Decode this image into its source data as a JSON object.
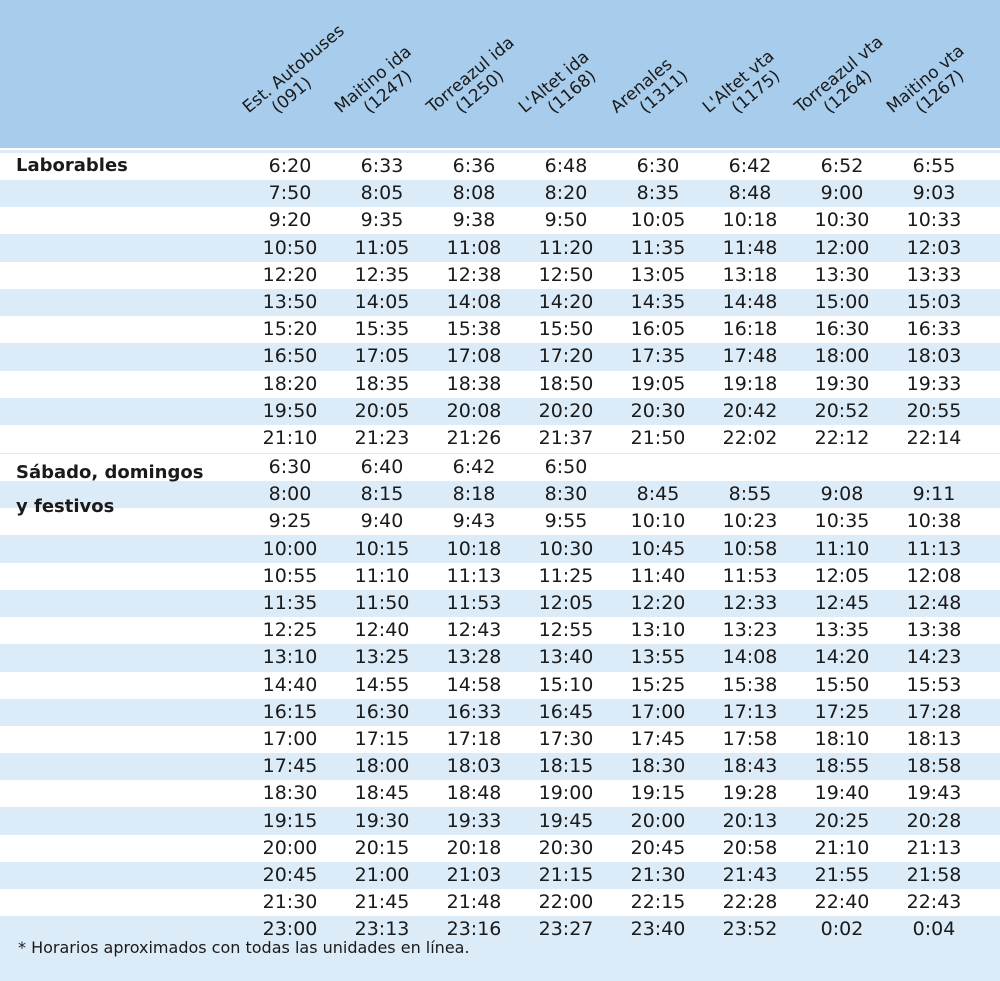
{
  "header": {
    "columns": [
      {
        "name": "Est. Autobuses",
        "code": "(091)"
      },
      {
        "name": "Maitino ida",
        "code": "(1247)"
      },
      {
        "name": "Torreazul ida",
        "code": "(1250)"
      },
      {
        "name": "L'Altet ida",
        "code": "(1168)"
      },
      {
        "name": "Arenales",
        "code": "(1311)"
      },
      {
        "name": "L'Altet vta",
        "code": "(1175)"
      },
      {
        "name": "Torreazul vta",
        "code": "(1264)"
      },
      {
        "name": "Maitino vta",
        "code": "(1267)"
      }
    ]
  },
  "sections": [
    {
      "label_lines": [
        "Laborables"
      ],
      "rows": [
        [
          "6:20",
          "6:33",
          "6:36",
          "6:48",
          "6:30",
          "6:42",
          "6:52",
          "6:55"
        ],
        [
          "7:50",
          "8:05",
          "8:08",
          "8:20",
          "8:35",
          "8:48",
          "9:00",
          "9:03"
        ],
        [
          "9:20",
          "9:35",
          "9:38",
          "9:50",
          "10:05",
          "10:18",
          "10:30",
          "10:33"
        ],
        [
          "10:50",
          "11:05",
          "11:08",
          "11:20",
          "11:35",
          "11:48",
          "12:00",
          "12:03"
        ],
        [
          "12:20",
          "12:35",
          "12:38",
          "12:50",
          "13:05",
          "13:18",
          "13:30",
          "13:33"
        ],
        [
          "13:50",
          "14:05",
          "14:08",
          "14:20",
          "14:35",
          "14:48",
          "15:00",
          "15:03"
        ],
        [
          "15:20",
          "15:35",
          "15:38",
          "15:50",
          "16:05",
          "16:18",
          "16:30",
          "16:33"
        ],
        [
          "16:50",
          "17:05",
          "17:08",
          "17:20",
          "17:35",
          "17:48",
          "18:00",
          "18:03"
        ],
        [
          "18:20",
          "18:35",
          "18:38",
          "18:50",
          "19:05",
          "19:18",
          "19:30",
          "19:33"
        ],
        [
          "19:50",
          "20:05",
          "20:08",
          "20:20",
          "20:30",
          "20:42",
          "20:52",
          "20:55"
        ],
        [
          "21:10",
          "21:23",
          "21:26",
          "21:37",
          "21:50",
          "22:02",
          "22:12",
          "22:14"
        ]
      ]
    },
    {
      "label_lines": [
        "Sábado, domingos",
        "y festivos"
      ],
      "rows": [
        [
          "6:30",
          "6:40",
          "6:42",
          "6:50",
          "",
          "",
          "",
          ""
        ],
        [
          "8:00",
          "8:15",
          "8:18",
          "8:30",
          "8:45",
          "8:55",
          "9:08",
          "9:11"
        ],
        [
          "9:25",
          "9:40",
          "9:43",
          "9:55",
          "10:10",
          "10:23",
          "10:35",
          "10:38"
        ],
        [
          "10:00",
          "10:15",
          "10:18",
          "10:30",
          "10:45",
          "10:58",
          "11:10",
          "11:13"
        ],
        [
          "10:55",
          "11:10",
          "11:13",
          "11:25",
          "11:40",
          "11:53",
          "12:05",
          "12:08"
        ],
        [
          "11:35",
          "11:50",
          "11:53",
          "12:05",
          "12:20",
          "12:33",
          "12:45",
          "12:48"
        ],
        [
          "12:25",
          "12:40",
          "12:43",
          "12:55",
          "13:10",
          "13:23",
          "13:35",
          "13:38"
        ],
        [
          "13:10",
          "13:25",
          "13:28",
          "13:40",
          "13:55",
          "14:08",
          "14:20",
          "14:23"
        ],
        [
          "14:40",
          "14:55",
          "14:58",
          "15:10",
          "15:25",
          "15:38",
          "15:50",
          "15:53"
        ],
        [
          "16:15",
          "16:30",
          "16:33",
          "16:45",
          "17:00",
          "17:13",
          "17:25",
          "17:28"
        ],
        [
          "17:00",
          "17:15",
          "17:18",
          "17:30",
          "17:45",
          "17:58",
          "18:10",
          "18:13"
        ],
        [
          "17:45",
          "18:00",
          "18:03",
          "18:15",
          "18:30",
          "18:43",
          "18:55",
          "18:58"
        ],
        [
          "18:30",
          "18:45",
          "18:48",
          "19:00",
          "19:15",
          "19:28",
          "19:40",
          "19:43"
        ],
        [
          "19:15",
          "19:30",
          "19:33",
          "19:45",
          "20:00",
          "20:13",
          "20:25",
          "20:28"
        ],
        [
          "20:00",
          "20:15",
          "20:18",
          "20:30",
          "20:45",
          "20:58",
          "21:10",
          "21:13"
        ],
        [
          "20:45",
          "21:00",
          "21:03",
          "21:15",
          "21:30",
          "21:43",
          "21:55",
          "21:58"
        ],
        [
          "21:30",
          "21:45",
          "21:48",
          "22:00",
          "22:15",
          "22:28",
          "22:40",
          "22:43"
        ],
        [
          "23:00",
          "23:13",
          "23:16",
          "23:27",
          "23:40",
          "23:52",
          "0:02",
          "0:04"
        ]
      ]
    }
  ],
  "footnote": "* Horarios aproximados con todas las unidades en línea.",
  "colors": {
    "header_bg": "#a8ccec",
    "row_light": "#ffffff",
    "row_tint": "#dcebf8"
  }
}
